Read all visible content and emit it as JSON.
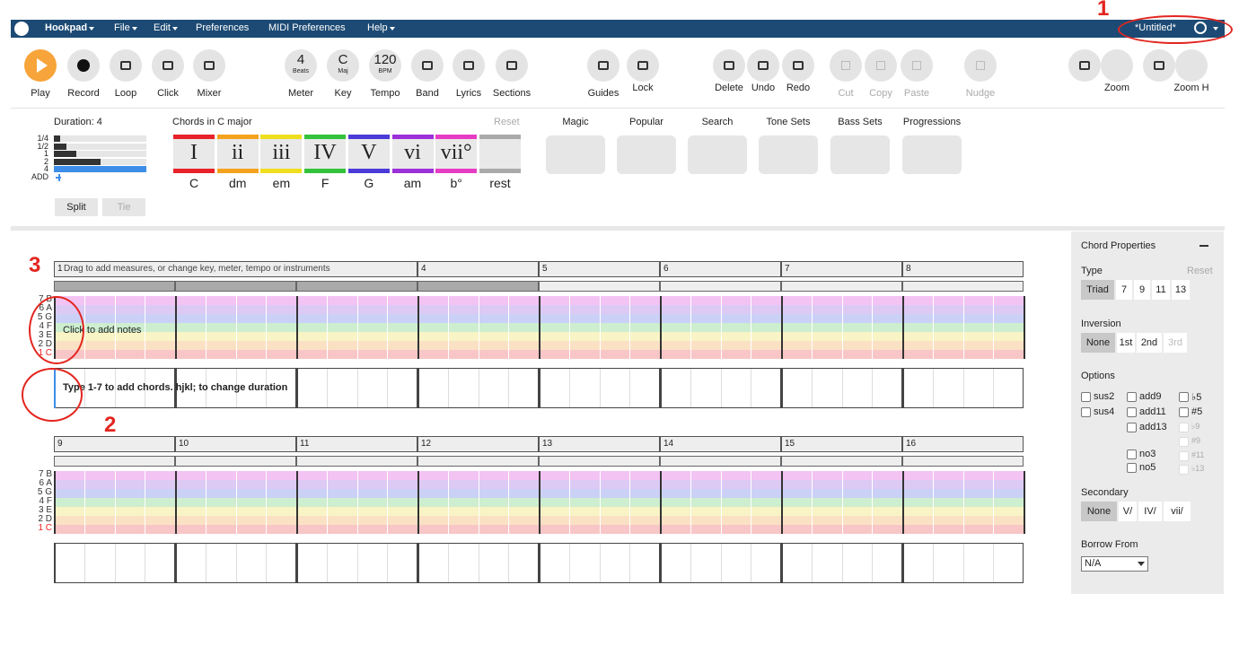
{
  "menu": {
    "items": [
      "Hookpad",
      "File",
      "Edit",
      "Preferences",
      "MIDI Preferences",
      "Help"
    ],
    "document_title": "*Untitled*"
  },
  "toolbar": {
    "transport": [
      "Play",
      "Record",
      "Loop",
      "Click",
      "Mixer"
    ],
    "meter": {
      "value": "4",
      "unit": "Beats",
      "label": "Meter"
    },
    "key": {
      "value": "C",
      "unit": "Maj",
      "label": "Key"
    },
    "tempo": {
      "value": "120",
      "unit": "BPM",
      "label": "Tempo"
    },
    "tools": [
      "Band",
      "Lyrics",
      "Sections"
    ],
    "view": [
      "Guides",
      "Lock"
    ],
    "edit": [
      "Delete",
      "Undo",
      "Redo",
      "Cut",
      "Copy",
      "Paste",
      "Nudge"
    ],
    "zoom": [
      "Zoom",
      "Zoom H"
    ]
  },
  "duration": {
    "title": "Duration: 4",
    "levels": [
      "1/4",
      "1/2",
      "1",
      "2",
      "4",
      "ADD"
    ],
    "buttons": [
      "Split",
      "Tie"
    ]
  },
  "chords": {
    "title": "Chords in C major",
    "reset": "Reset",
    "items": [
      {
        "numeral": "I",
        "name": "C"
      },
      {
        "numeral": "ii",
        "name": "dm"
      },
      {
        "numeral": "iii",
        "name": "em"
      },
      {
        "numeral": "IV",
        "name": "F"
      },
      {
        "numeral": "V",
        "name": "G"
      },
      {
        "numeral": "vi",
        "name": "am"
      },
      {
        "numeral": "vii°",
        "name": "b°"
      }
    ],
    "rest": "rest"
  },
  "tabs": [
    "Magic",
    "Popular",
    "Search",
    "Tone Sets",
    "Bass Sets",
    "Progressions"
  ],
  "annotations": [
    "1",
    "2",
    "3"
  ],
  "score": {
    "measures_hint": "Drag to add measures, or change key, meter, tempo or instruments",
    "measures": [
      "1",
      null,
      null,
      "4",
      "5",
      "6",
      "7",
      "8",
      "9",
      "10",
      "11",
      "12",
      "13",
      "14",
      "15",
      "16"
    ],
    "notes": [
      "7 B",
      "6 A",
      "5 G",
      "4 F",
      "3 E",
      "2 D",
      "1 C"
    ],
    "notes_hint": "Click to add notes",
    "chords_hint": "Type 1-7 to add chords. hjkl; to change duration"
  },
  "properties": {
    "title": "Chord Properties",
    "type": {
      "label": "Type",
      "reset": "Reset",
      "options": [
        "Triad",
        "7",
        "9",
        "11",
        "13"
      ]
    },
    "inversion": {
      "label": "Inversion",
      "options": [
        "None",
        "1st",
        "2nd",
        "3rd"
      ]
    },
    "options": {
      "label": "Options",
      "items": [
        "sus2",
        "sus4",
        "add9",
        "add11",
        "add13",
        "no3",
        "no5",
        "♭5",
        "#5",
        "♭9",
        "#9",
        "#11",
        "♭13"
      ]
    },
    "secondary": {
      "label": "Secondary",
      "options": [
        "None",
        "V/",
        "IV/",
        "vii/"
      ]
    },
    "borrow": {
      "label": "Borrow From",
      "value": "N/A"
    }
  }
}
